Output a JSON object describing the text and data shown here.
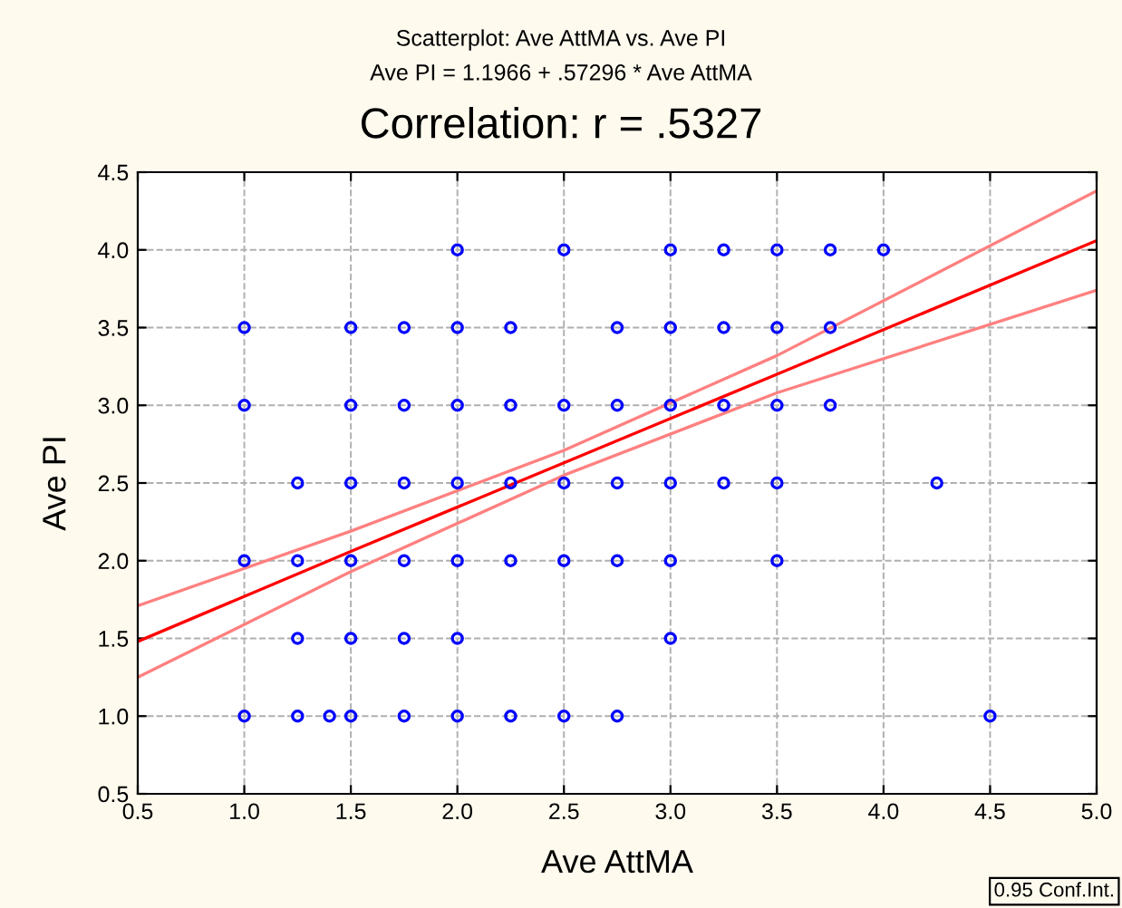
{
  "chart_data": {
    "type": "scatter",
    "title": "Scatterplot: Ave AttMA vs. Ave PI",
    "subtitle": "Ave PI = 1.1966 + .57296 * Ave AttMA",
    "xlabel": "Ave AttMA",
    "ylabel": "Ave PI",
    "annotations": [
      "Correlation: r = .5327",
      "0.95 Conf.Int."
    ],
    "xlim": [
      0.5,
      5.0
    ],
    "ylim": [
      0.5,
      4.5
    ],
    "xticks": [
      {
        "value": 0.5,
        "label": "0.5"
      },
      {
        "value": 1.0,
        "label": "1.0"
      },
      {
        "value": 1.5,
        "label": "1.5"
      },
      {
        "value": 2.0,
        "label": "2.0"
      },
      {
        "value": 2.5,
        "label": "2.5"
      },
      {
        "value": 3.0,
        "label": "3.0"
      },
      {
        "value": 3.5,
        "label": "3.5"
      },
      {
        "value": 4.0,
        "label": "4.0"
      },
      {
        "value": 4.5,
        "label": "4.5"
      },
      {
        "value": 5.0,
        "label": "5.0"
      }
    ],
    "yticks": [
      {
        "value": 0.5,
        "label": "0.5"
      },
      {
        "value": 1.0,
        "label": "1.0"
      },
      {
        "value": 1.5,
        "label": "1.5"
      },
      {
        "value": 2.0,
        "label": "2.0"
      },
      {
        "value": 2.5,
        "label": "2.5"
      },
      {
        "value": 3.0,
        "label": "3.0"
      },
      {
        "value": 3.5,
        "label": "3.5"
      },
      {
        "value": 4.0,
        "label": "4.0"
      },
      {
        "value": 4.5,
        "label": "4.5"
      }
    ],
    "grid": true,
    "legend": false,
    "series": [
      {
        "color": "#0000ff",
        "marker": "circle",
        "x": [
          2.0,
          2.5,
          3.0,
          3.25,
          3.5,
          3.75,
          4.0,
          1.0,
          1.5,
          1.75,
          2.0,
          2.25,
          2.75,
          3.0,
          3.25,
          3.5,
          3.75,
          1.0,
          1.5,
          1.75,
          2.0,
          2.25,
          2.5,
          2.75,
          3.0,
          3.25,
          3.5,
          3.75,
          1.25,
          1.5,
          1.75,
          2.0,
          2.25,
          2.5,
          2.75,
          3.0,
          3.25,
          3.5,
          4.25,
          1.0,
          1.25,
          1.5,
          1.75,
          2.0,
          2.25,
          2.5,
          2.75,
          3.0,
          3.5,
          1.25,
          1.5,
          1.75,
          2.0,
          3.0,
          1.0,
          1.25,
          1.4,
          1.5,
          1.75,
          2.0,
          2.25,
          2.5,
          2.75,
          4.5
        ],
        "values": [
          4.0,
          4.0,
          4.0,
          4.0,
          4.0,
          4.0,
          4.0,
          3.5,
          3.5,
          3.5,
          3.5,
          3.5,
          3.5,
          3.5,
          3.5,
          3.5,
          3.5,
          3.0,
          3.0,
          3.0,
          3.0,
          3.0,
          3.0,
          3.0,
          3.0,
          3.0,
          3.0,
          3.0,
          2.5,
          2.5,
          2.5,
          2.5,
          2.5,
          2.5,
          2.5,
          2.5,
          2.5,
          2.5,
          2.5,
          2.0,
          2.0,
          2.0,
          2.0,
          2.0,
          2.0,
          2.0,
          2.0,
          2.0,
          2.0,
          1.5,
          1.5,
          1.5,
          1.5,
          1.5,
          1.0,
          1.0,
          1.0,
          1.0,
          1.0,
          1.0,
          1.0,
          1.0,
          1.0,
          1.0
        ]
      },
      {
        "type": "line",
        "color": "#ff0000",
        "line_style": "solid",
        "marker": "none",
        "x": [
          0.5,
          1.5,
          2.5,
          3.5,
          5.0
        ],
        "values": [
          1.48,
          2.06,
          2.63,
          3.2,
          4.06
        ]
      },
      {
        "type": "line",
        "color": "#ff8080",
        "line_style": "solid",
        "marker": "none",
        "x": [
          0.5,
          1.5,
          2.5,
          3.5,
          5.0
        ],
        "values": [
          1.25,
          1.93,
          2.55,
          3.08,
          3.74
        ]
      },
      {
        "type": "line",
        "color": "#ff8080",
        "line_style": "solid",
        "marker": "none",
        "x": [
          0.5,
          1.5,
          2.5,
          3.5,
          5.0
        ],
        "values": [
          1.71,
          2.19,
          2.71,
          3.32,
          4.38
        ]
      }
    ]
  }
}
